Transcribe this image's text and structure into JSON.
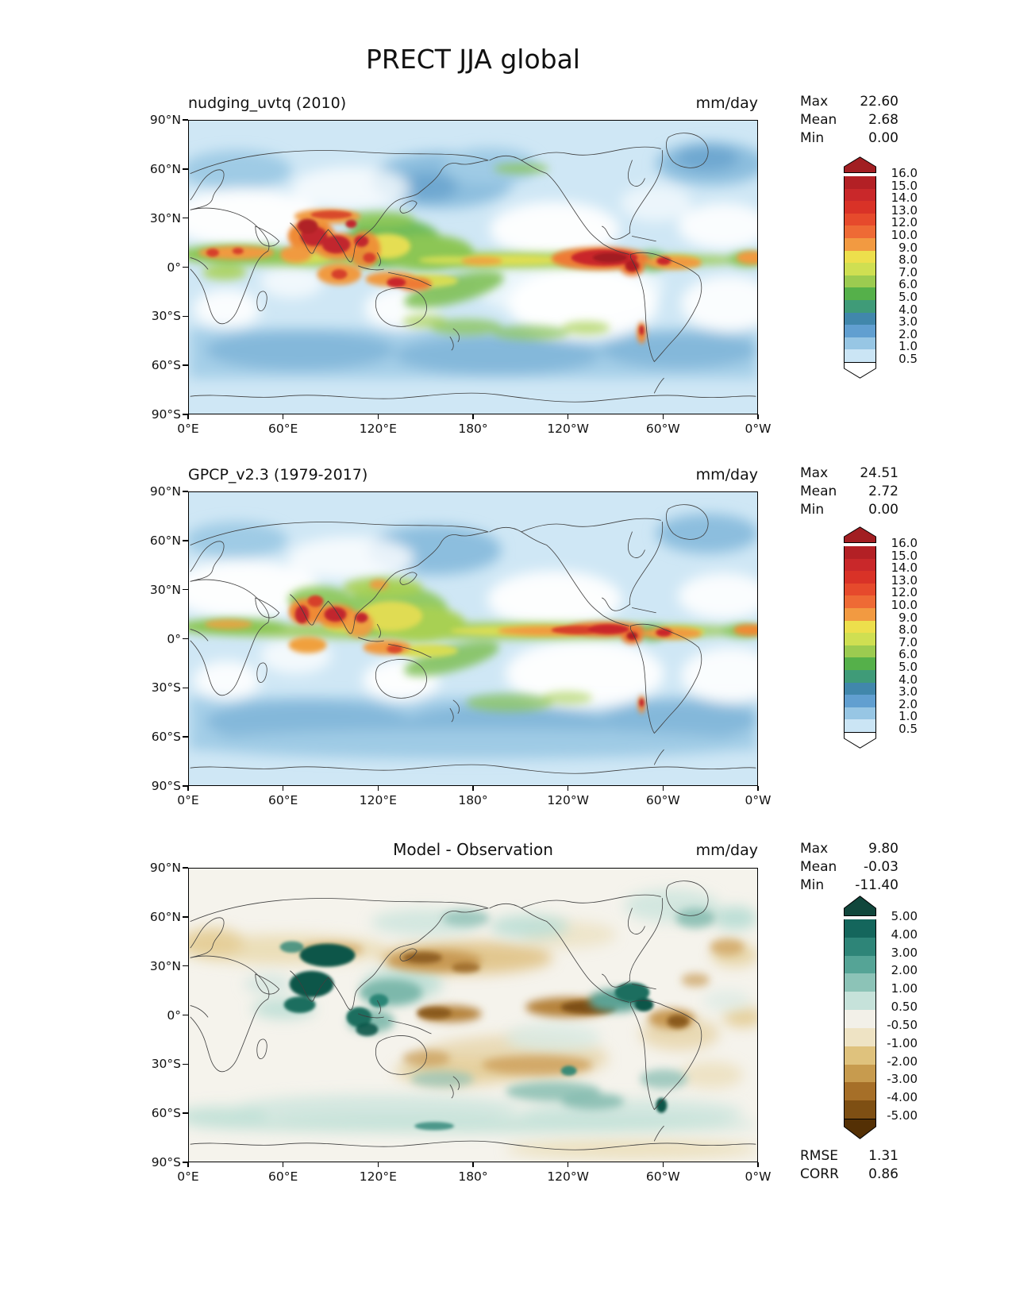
{
  "figure_title": "PRECT JJA global",
  "axes": {
    "x_labels": [
      "0°E",
      "60°E",
      "120°E",
      "180°",
      "120°W",
      "60°W",
      "0°W"
    ],
    "y_labels": [
      "90°N",
      "60°N",
      "30°N",
      "0°",
      "30°S",
      "60°S",
      "90°S"
    ]
  },
  "panels": [
    {
      "name": "model",
      "title": "nudging_uvtq (2010)",
      "units": "mm/day",
      "stats": [
        {
          "label": "Max",
          "value": "22.60"
        },
        {
          "label": "Mean",
          "value": "2.68"
        },
        {
          "label": "Min",
          "value": "0.00"
        }
      ]
    },
    {
      "name": "observation",
      "title": "GPCP_v2.3 (1979-2017)",
      "units": "mm/day",
      "stats": [
        {
          "label": "Max",
          "value": "24.51"
        },
        {
          "label": "Mean",
          "value": "2.72"
        },
        {
          "label": "Min",
          "value": "0.00"
        }
      ]
    },
    {
      "name": "difference",
      "title": "Model - Observation",
      "units": "mm/day",
      "stats": [
        {
          "label": "Max",
          "value": "9.80"
        },
        {
          "label": "Mean",
          "value": "-0.03"
        },
        {
          "label": "Min",
          "value": "-11.40"
        }
      ],
      "metrics": [
        {
          "label": "RMSE",
          "value": "1.31"
        },
        {
          "label": "CORR",
          "value": "0.86"
        }
      ]
    }
  ],
  "colorbars": [
    {
      "panel": "model",
      "arrow_top": "#a21e22",
      "arrow_bottom": "#ffffff",
      "colors_top_to_bottom": [
        "#b32025",
        "#c9282a",
        "#d93227",
        "#e64a2c",
        "#ee6a35",
        "#f29a41",
        "#eddf4c",
        "#cfdf52",
        "#9ccb50",
        "#55b04a",
        "#3f9b78",
        "#4187ab",
        "#619fd0",
        "#97c6e4",
        "#cbe5f5"
      ],
      "ticks": [
        "16.0",
        "15.0",
        "14.0",
        "13.0",
        "12.0",
        "10.0",
        "9.0",
        "8.0",
        "7.0",
        "6.0",
        "5.0",
        "4.0",
        "3.0",
        "2.0",
        "1.0",
        "0.5"
      ]
    },
    {
      "panel": "observation",
      "arrow_top": "#a21e22",
      "arrow_bottom": "#ffffff",
      "colors_top_to_bottom": [
        "#b32025",
        "#c9282a",
        "#d93227",
        "#e64a2c",
        "#ee6a35",
        "#f29a41",
        "#eddf4c",
        "#cfdf52",
        "#9ccb50",
        "#55b04a",
        "#3f9b78",
        "#4187ab",
        "#619fd0",
        "#97c6e4",
        "#cbe5f5"
      ],
      "ticks": [
        "16.0",
        "15.0",
        "14.0",
        "13.0",
        "12.0",
        "10.0",
        "9.0",
        "8.0",
        "7.0",
        "6.0",
        "5.0",
        "4.0",
        "3.0",
        "2.0",
        "1.0",
        "0.5"
      ]
    },
    {
      "panel": "difference",
      "arrow_top": "#11473c",
      "arrow_bottom": "#543005",
      "colors_top_to_bottom": [
        "#14665c",
        "#2e8578",
        "#55a496",
        "#8cc3b7",
        "#c6e2da",
        "#f2f0e8",
        "#eee3c4",
        "#dfc27d",
        "#c79b4e",
        "#a66f28",
        "#7e4f13"
      ],
      "ticks": [
        "5.00",
        "4.00",
        "3.00",
        "2.00",
        "1.00",
        "0.50",
        "-0.50",
        "-1.00",
        "-2.00",
        "-3.00",
        "-4.00",
        "-5.00"
      ]
    }
  ],
  "chart_data": [
    {
      "type": "heatmap",
      "subtype": "filled-contour global lat-lon map",
      "title": "nudging_uvtq (2010)",
      "figure_title": "PRECT JJA global",
      "variable": "PRECT",
      "season": "JJA",
      "units": "mm/day",
      "x": {
        "label": "longitude",
        "range_deg_east": [
          0,
          360
        ],
        "ticks": [
          "0°E",
          "60°E",
          "120°E",
          "180°",
          "120°W",
          "60°W",
          "0°W"
        ]
      },
      "y": {
        "label": "latitude",
        "range": [
          -90,
          90
        ],
        "ticks": [
          "90°N",
          "60°N",
          "30°N",
          "0°",
          "30°S",
          "60°S",
          "90°S"
        ]
      },
      "contour_levels": [
        0.5,
        1.0,
        2.0,
        3.0,
        4.0,
        5.0,
        6.0,
        7.0,
        8.0,
        9.0,
        10.0,
        12.0,
        13.0,
        14.0,
        15.0,
        16.0
      ],
      "stats": {
        "max": 22.6,
        "mean": 2.68,
        "min": 0.0
      },
      "legend_position": "right vertical colorbar with over/under arrows"
    },
    {
      "type": "heatmap",
      "subtype": "filled-contour global lat-lon map",
      "title": "GPCP_v2.3 (1979-2017)",
      "variable": "PRECT",
      "season": "JJA",
      "units": "mm/day",
      "x": {
        "label": "longitude",
        "range_deg_east": [
          0,
          360
        ],
        "ticks": [
          "0°E",
          "60°E",
          "120°E",
          "180°",
          "120°W",
          "60°W",
          "0°W"
        ]
      },
      "y": {
        "label": "latitude",
        "range": [
          -90,
          90
        ],
        "ticks": [
          "90°N",
          "60°N",
          "30°N",
          "0°",
          "30°S",
          "60°S",
          "90°S"
        ]
      },
      "contour_levels": [
        0.5,
        1.0,
        2.0,
        3.0,
        4.0,
        5.0,
        6.0,
        7.0,
        8.0,
        9.0,
        10.0,
        12.0,
        13.0,
        14.0,
        15.0,
        16.0
      ],
      "stats": {
        "max": 24.51,
        "mean": 2.72,
        "min": 0.0
      },
      "legend_position": "right vertical colorbar with over/under arrows"
    },
    {
      "type": "heatmap",
      "subtype": "filled-contour global lat-lon difference map",
      "title": "Model - Observation",
      "variable": "PRECT difference",
      "season": "JJA",
      "units": "mm/day",
      "x": {
        "label": "longitude",
        "range_deg_east": [
          0,
          360
        ],
        "ticks": [
          "0°E",
          "60°E",
          "120°E",
          "180°",
          "120°W",
          "60°W",
          "0°W"
        ]
      },
      "y": {
        "label": "latitude",
        "range": [
          -90,
          90
        ],
        "ticks": [
          "90°N",
          "60°N",
          "30°N",
          "0°",
          "30°S",
          "60°S",
          "90°S"
        ]
      },
      "contour_levels": [
        -5.0,
        -4.0,
        -3.0,
        -2.0,
        -1.0,
        -0.5,
        0.5,
        1.0,
        2.0,
        3.0,
        4.0,
        5.0
      ],
      "stats": {
        "max": 9.8,
        "mean": -0.03,
        "min": -11.4
      },
      "metrics": {
        "RMSE": 1.31,
        "CORR": 0.86
      },
      "legend_position": "right vertical colorbar with over/under arrows"
    }
  ]
}
